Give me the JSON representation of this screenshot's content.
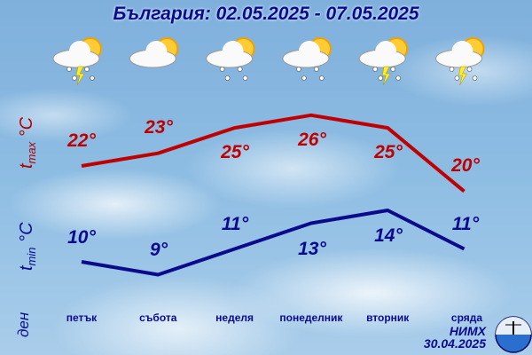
{
  "title": "България: 02.05.2025 - 07.05.2025",
  "footer": {
    "org": "НИМХ",
    "issued": "30.04.2025"
  },
  "chart_data": {
    "type": "line",
    "title": "България: 02.05.2025 - 07.05.2025",
    "categories": [
      "петък",
      "събота",
      "неделя",
      "понеделник",
      "вторник",
      "сряда"
    ],
    "xlabel": "ден",
    "icons": [
      "sun-cloud-rain-thunder",
      "sun-cloud",
      "sun-cloud-rain",
      "sun-cloud-rain",
      "sun-cloud-rain-thunder",
      "sun-cloud-rain-thunder"
    ],
    "series": [
      {
        "name": "tmax °C",
        "color": "#c00000",
        "values": [
          22,
          23,
          25,
          26,
          25,
          20
        ],
        "labels": [
          "22°",
          "23°",
          "25°",
          "26°",
          "25°",
          "20°"
        ]
      },
      {
        "name": "tmin °C",
        "color": "#0a0a8c",
        "values": [
          10,
          9,
          11,
          13,
          14,
          11
        ],
        "labels": [
          "10°",
          "9°",
          "11°",
          "13°",
          "14°",
          "11°"
        ]
      }
    ]
  }
}
